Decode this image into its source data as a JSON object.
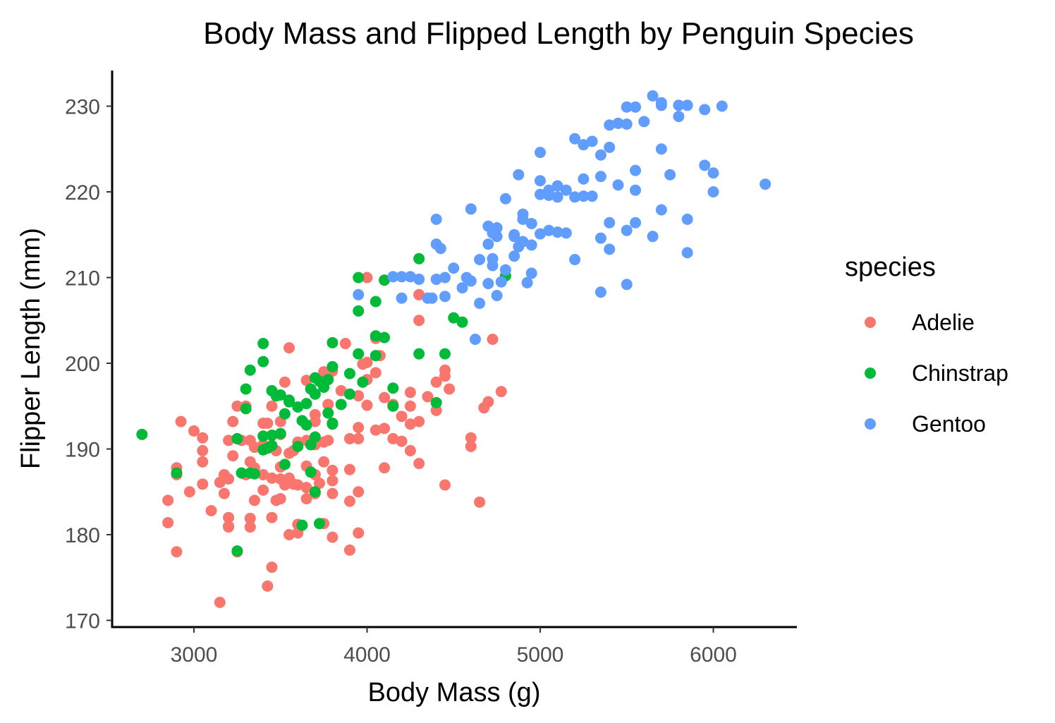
{
  "chart_data": {
    "type": "scatter",
    "title": "Body Mass and Flipped Length by Penguin Species",
    "xlabel": "Body Mass (g)",
    "ylabel": "Flipper Length (mm)",
    "xlim": [
      2550,
      6450
    ],
    "ylim": [
      169,
      234
    ],
    "xticks": [
      3000,
      4000,
      5000,
      6000
    ],
    "yticks": [
      170,
      180,
      190,
      200,
      210,
      220,
      230
    ],
    "grid": false,
    "legend": {
      "title": "species",
      "position": "right"
    },
    "series": [
      {
        "name": "Adelie",
        "color": "#F8766D",
        "points": [
          [
            2850,
            184
          ],
          [
            2850,
            181.4
          ],
          [
            2900,
            187.8
          ],
          [
            2900,
            187
          ],
          [
            2900,
            178
          ],
          [
            2925,
            193.2
          ],
          [
            2975,
            185
          ],
          [
            3000,
            192.1
          ],
          [
            3050,
            191.3
          ],
          [
            3050,
            189.8
          ],
          [
            3050,
            188.5
          ],
          [
            3050,
            185.9
          ],
          [
            3100,
            182.8
          ],
          [
            3150,
            186.1
          ],
          [
            3150,
            172.1
          ],
          [
            3175,
            187
          ],
          [
            3175,
            184.8
          ],
          [
            3200,
            182
          ],
          [
            3200,
            181
          ],
          [
            3200,
            191
          ],
          [
            3200,
            186.5
          ],
          [
            3200,
            180.9
          ],
          [
            3225,
            193.2
          ],
          [
            3225,
            189.2
          ],
          [
            3250,
            178
          ],
          [
            3250,
            195
          ],
          [
            3275,
            191
          ],
          [
            3300,
            187
          ],
          [
            3300,
            195
          ],
          [
            3325,
            191
          ],
          [
            3325,
            188.5
          ],
          [
            3325,
            180.9
          ],
          [
            3325,
            181.9
          ],
          [
            3350,
            184
          ],
          [
            3350,
            190.2
          ],
          [
            3350,
            187.8
          ],
          [
            3400,
            193
          ],
          [
            3400,
            185.2
          ],
          [
            3400,
            187
          ],
          [
            3400,
            190.2
          ],
          [
            3400,
            190.5
          ],
          [
            3425,
            193
          ],
          [
            3425,
            174
          ],
          [
            3450,
            182
          ],
          [
            3450,
            186.6
          ],
          [
            3450,
            176.2
          ],
          [
            3450,
            195
          ],
          [
            3475,
            184
          ],
          [
            3475,
            189.8
          ],
          [
            3500,
            193.2
          ],
          [
            3500,
            184.2
          ],
          [
            3500,
            186.5
          ],
          [
            3500,
            187.9
          ],
          [
            3500,
            191.7
          ],
          [
            3525,
            197.8
          ],
          [
            3525,
            185.8
          ],
          [
            3550,
            180
          ],
          [
            3550,
            189.5
          ],
          [
            3550,
            186.6
          ],
          [
            3550,
            201.8
          ],
          [
            3575,
            189.8
          ],
          [
            3575,
            185.9
          ],
          [
            3600,
            181.2
          ],
          [
            3600,
            190.8
          ],
          [
            3600,
            185.8
          ],
          [
            3600,
            180.2
          ],
          [
            3650,
            191
          ],
          [
            3650,
            185.5
          ],
          [
            3650,
            198
          ],
          [
            3650,
            184.2
          ],
          [
            3650,
            188
          ],
          [
            3700,
            184.8
          ],
          [
            3700,
            193.2
          ],
          [
            3700,
            190.5
          ],
          [
            3700,
            187
          ],
          [
            3700,
            194
          ],
          [
            3725,
            186
          ],
          [
            3750,
            199
          ],
          [
            3750,
            190.8
          ],
          [
            3750,
            188.5
          ],
          [
            3750,
            181.3
          ],
          [
            3775,
            195.2
          ],
          [
            3775,
            191
          ],
          [
            3800,
            199.1
          ],
          [
            3800,
            193
          ],
          [
            3800,
            184.8
          ],
          [
            3800,
            179.7
          ],
          [
            3800,
            187.5
          ],
          [
            3800,
            186.3
          ],
          [
            3850,
            196.8
          ],
          [
            3875,
            202.3
          ],
          [
            3900,
            191.2
          ],
          [
            3900,
            178.2
          ],
          [
            3900,
            187.6
          ],
          [
            3900,
            183.9
          ],
          [
            3950,
            191.2
          ],
          [
            3950,
            196.2
          ],
          [
            3950,
            185
          ],
          [
            3950,
            180.2
          ],
          [
            3950,
            192.5
          ],
          [
            3975,
            199.9
          ],
          [
            4000,
            198.1
          ],
          [
            4000,
            210
          ],
          [
            4000,
            195.1
          ],
          [
            4000,
            200.1
          ],
          [
            4050,
            192.2
          ],
          [
            4050,
            198.9
          ],
          [
            4050,
            202.9
          ],
          [
            4075,
            200.9
          ],
          [
            4100,
            192.4
          ],
          [
            4100,
            196
          ],
          [
            4100,
            187.8
          ],
          [
            4150,
            195.2
          ],
          [
            4150,
            191.2
          ],
          [
            4200,
            193.8
          ],
          [
            4200,
            190.9
          ],
          [
            4250,
            196.6
          ],
          [
            4250,
            192.9
          ],
          [
            4250,
            195
          ],
          [
            4250,
            189.8
          ],
          [
            4300,
            193.2
          ],
          [
            4300,
            205
          ],
          [
            4300,
            208
          ],
          [
            4300,
            188.3
          ],
          [
            4350,
            196.1
          ],
          [
            4400,
            197.8
          ],
          [
            4400,
            194.5
          ],
          [
            4450,
            185.8
          ],
          [
            4450,
            199.2
          ],
          [
            4450,
            198.5
          ],
          [
            4475,
            197
          ],
          [
            4600,
            191.3
          ],
          [
            4600,
            190.3
          ],
          [
            4650,
            183.8
          ],
          [
            4675,
            194.8
          ],
          [
            4700,
            195.5
          ],
          [
            4725,
            202.8
          ],
          [
            4775,
            196.7
          ]
        ]
      },
      {
        "name": "Chinstrap",
        "color": "#00BA38",
        "points": [
          [
            2700,
            191.7
          ],
          [
            2900,
            187.2
          ],
          [
            3250,
            178.1
          ],
          [
            3250,
            191.2
          ],
          [
            3275,
            187.2
          ],
          [
            3300,
            197
          ],
          [
            3300,
            194.7
          ],
          [
            3325,
            199.2
          ],
          [
            3325,
            187.2
          ],
          [
            3350,
            187.1
          ],
          [
            3400,
            200.2
          ],
          [
            3400,
            189.9
          ],
          [
            3400,
            191.5
          ],
          [
            3400,
            202.3
          ],
          [
            3425,
            190.1
          ],
          [
            3450,
            196.8
          ],
          [
            3450,
            191.6
          ],
          [
            3450,
            190.4
          ],
          [
            3500,
            196.3
          ],
          [
            3500,
            191.8
          ],
          [
            3525,
            194.1
          ],
          [
            3525,
            188.2
          ],
          [
            3550,
            195.7
          ],
          [
            3600,
            190.3
          ],
          [
            3600,
            194.9
          ],
          [
            3625,
            181.1
          ],
          [
            3625,
            193.3
          ],
          [
            3650,
            192.8
          ],
          [
            3650,
            195.3
          ],
          [
            3675,
            187.3
          ],
          [
            3675,
            190.5
          ],
          [
            3700,
            198.3
          ],
          [
            3700,
            196.4
          ],
          [
            3700,
            191.4
          ],
          [
            3700,
            185
          ],
          [
            3725,
            197.9
          ],
          [
            3725,
            181.3
          ],
          [
            3750,
            197.2
          ],
          [
            3775,
            198.1
          ],
          [
            3775,
            194.2
          ],
          [
            3800,
            192.9
          ],
          [
            3800,
            202.4
          ],
          [
            3800,
            199.6
          ],
          [
            3800,
            193
          ],
          [
            3850,
            195.2
          ],
          [
            3900,
            196.4
          ],
          [
            3900,
            198.8
          ],
          [
            3950,
            201.1
          ],
          [
            3950,
            206.1
          ],
          [
            3950,
            210
          ],
          [
            3975,
            197.8
          ],
          [
            4050,
            207.2
          ],
          [
            4050,
            203.2
          ],
          [
            4100,
            203
          ],
          [
            4100,
            209.7
          ],
          [
            4150,
            197.1
          ],
          [
            4150,
            195
          ],
          [
            4300,
            212.2
          ],
          [
            4300,
            201.1
          ],
          [
            4400,
            195.4
          ],
          [
            4450,
            201.1
          ],
          [
            4500,
            205.3
          ],
          [
            4550,
            204.8
          ],
          [
            4800,
            210.2
          ],
          [
            4050,
            200.9
          ],
          [
            3550,
            195.5
          ],
          [
            3475,
            196.2
          ],
          [
            3675,
            197
          ]
        ]
      },
      {
        "name": "Gentoo",
        "color": "#619CFF",
        "points": [
          [
            3950,
            208
          ],
          [
            4150,
            210.1
          ],
          [
            4200,
            210.1
          ],
          [
            4250,
            210.1
          ],
          [
            4200,
            207.6
          ],
          [
            4300,
            209.8
          ],
          [
            4350,
            207.6
          ],
          [
            4375,
            207.6
          ],
          [
            4400,
            209.8
          ],
          [
            4400,
            216.8
          ],
          [
            4400,
            213.9
          ],
          [
            4425,
            213.4
          ],
          [
            4450,
            210
          ],
          [
            4450,
            207.8
          ],
          [
            4500,
            211.1
          ],
          [
            4550,
            208.8
          ],
          [
            4575,
            210
          ],
          [
            4600,
            209.6
          ],
          [
            4600,
            218
          ],
          [
            4625,
            202.8
          ],
          [
            4650,
            212.1
          ],
          [
            4650,
            207
          ],
          [
            4700,
            213.9
          ],
          [
            4700,
            216
          ],
          [
            4700,
            209.3
          ],
          [
            4725,
            212.2
          ],
          [
            4725,
            211.4
          ],
          [
            4750,
            215.8
          ],
          [
            4750,
            207.9
          ],
          [
            4775,
            209.5
          ],
          [
            4800,
            210.9
          ],
          [
            4800,
            219.2
          ],
          [
            4850,
            212.5
          ],
          [
            4850,
            215
          ],
          [
            4875,
            222
          ],
          [
            4875,
            213.6
          ],
          [
            4900,
            217.4
          ],
          [
            4900,
            214.2
          ],
          [
            4925,
            209.4
          ],
          [
            4950,
            210.5
          ],
          [
            4950,
            216.3
          ],
          [
            5000,
            215.1
          ],
          [
            5000,
            221.3
          ],
          [
            5000,
            219.7
          ],
          [
            5000,
            224.6
          ],
          [
            5050,
            220.2
          ],
          [
            5050,
            215.5
          ],
          [
            5100,
            215.3
          ],
          [
            5100,
            220.7
          ],
          [
            5150,
            215.2
          ],
          [
            5200,
            226.2
          ],
          [
            5200,
            212.1
          ],
          [
            5250,
            221.5
          ],
          [
            5250,
            225.5
          ],
          [
            5300,
            219.5
          ],
          [
            5350,
            221.8
          ],
          [
            5350,
            208.3
          ],
          [
            5400,
            213.3
          ],
          [
            5400,
            225.2
          ],
          [
            5400,
            227.8
          ],
          [
            5450,
            220.8
          ],
          [
            5500,
            209.2
          ],
          [
            5500,
            229.9
          ],
          [
            5500,
            215.5
          ],
          [
            5550,
            222.5
          ],
          [
            5550,
            229.9
          ],
          [
            5550,
            216.4
          ],
          [
            5550,
            220.2
          ],
          [
            5600,
            228.2
          ],
          [
            5650,
            231.2
          ],
          [
            5650,
            214.8
          ],
          [
            5700,
            230.1
          ],
          [
            5700,
            225
          ],
          [
            5700,
            217.9
          ],
          [
            5750,
            222
          ],
          [
            5800,
            230.1
          ],
          [
            5800,
            228.8
          ],
          [
            5850,
            216.8
          ],
          [
            5850,
            212.9
          ],
          [
            5950,
            229.6
          ],
          [
            5950,
            223.1
          ],
          [
            6000,
            220
          ],
          [
            6000,
            222.2
          ],
          [
            6050,
            230
          ],
          [
            6300,
            220.9
          ],
          [
            4725,
            215.2
          ],
          [
            4750,
            214.8
          ],
          [
            4900,
            216.8
          ],
          [
            5100,
            219.4
          ],
          [
            5200,
            219.4
          ],
          [
            5300,
            225.9
          ],
          [
            5350,
            224.3
          ],
          [
            5450,
            228
          ],
          [
            5500,
            227.9
          ],
          [
            5700,
            230.4
          ],
          [
            5850,
            230.1
          ],
          [
            5400,
            216.4
          ],
          [
            4850,
            214.8
          ],
          [
            4950,
            213.8
          ],
          [
            5050,
            219.6
          ],
          [
            5150,
            220.2
          ],
          [
            5250,
            219.5
          ],
          [
            5350,
            214.6
          ]
        ]
      }
    ]
  }
}
